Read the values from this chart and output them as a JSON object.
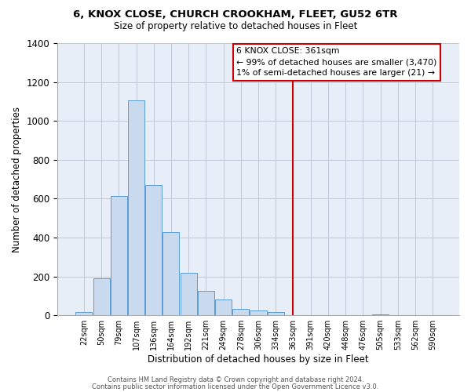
{
  "title": "6, KNOX CLOSE, CHURCH CROOKHAM, FLEET, GU52 6TR",
  "subtitle": "Size of property relative to detached houses in Fleet",
  "xlabel": "Distribution of detached houses by size in Fleet",
  "ylabel": "Number of detached properties",
  "bar_labels": [
    "22sqm",
    "50sqm",
    "79sqm",
    "107sqm",
    "136sqm",
    "164sqm",
    "192sqm",
    "221sqm",
    "249sqm",
    "278sqm",
    "306sqm",
    "334sqm",
    "363sqm",
    "391sqm",
    "420sqm",
    "448sqm",
    "476sqm",
    "505sqm",
    "533sqm",
    "562sqm",
    "590sqm"
  ],
  "bar_values": [
    15,
    190,
    615,
    1105,
    670,
    430,
    220,
    125,
    80,
    35,
    25,
    15,
    0,
    0,
    0,
    0,
    0,
    5,
    0,
    0,
    0
  ],
  "bar_color": "#c9d9ee",
  "bar_edge_color": "#5b9bd5",
  "vline_index": 12,
  "vline_color": "#cc0000",
  "ylim": [
    0,
    1400
  ],
  "yticks": [
    0,
    200,
    400,
    600,
    800,
    1000,
    1200,
    1400
  ],
  "annotation_title": "6 KNOX CLOSE: 361sqm",
  "annotation_line1": "← 99% of detached houses are smaller (3,470)",
  "annotation_line2": "1% of semi-detached houses are larger (21) →",
  "footer1": "Contains HM Land Registry data © Crown copyright and database right 2024.",
  "footer2": "Contains public sector information licensed under the Open Government Licence v3.0.",
  "bg_color": "#ffffff",
  "plot_bg_color": "#e8eef7",
  "grid_color": "#c0c8d8"
}
